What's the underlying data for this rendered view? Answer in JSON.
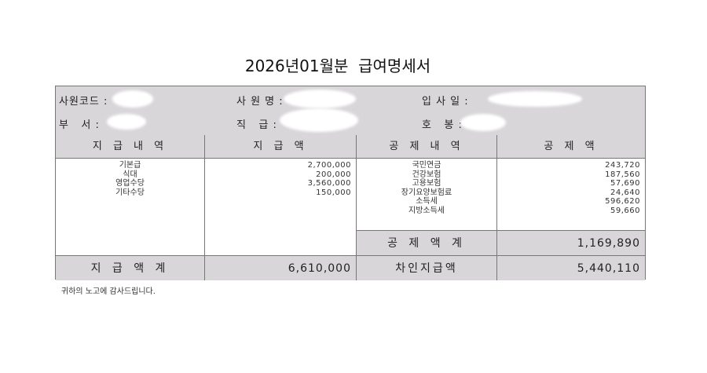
{
  "title": "2026년01월분  급여명세서",
  "info": {
    "employee_code": "사원코드 :",
    "employee_name": "사 원 명 :",
    "hire_date": "입 사 일 :",
    "department": "부   서 :",
    "position": "직   급 :",
    "step": "호   봉 :"
  },
  "headers": {
    "pay_items": "지 급 내 역",
    "pay_amount": "지 급 액",
    "deduction_items": "공 제 내 역",
    "deduction_amount": "공 제 액"
  },
  "pay": [
    {
      "name": "기본급",
      "amount": "2,700,000"
    },
    {
      "name": "식대",
      "amount": "200,000"
    },
    {
      "name": "영업수당",
      "amount": "3,560,000"
    },
    {
      "name": "기타수당",
      "amount": "150,000"
    }
  ],
  "deductions": [
    {
      "name": "국민연금",
      "amount": "243,720"
    },
    {
      "name": "건강보험",
      "amount": "187,560"
    },
    {
      "name": "고용보험",
      "amount": "57,690"
    },
    {
      "name": "장기요양보험료",
      "amount": "24,640"
    },
    {
      "name": "소득세",
      "amount": "596,620"
    },
    {
      "name": "지방소득세",
      "amount": "59,660"
    }
  ],
  "totals": {
    "deduction_label": "공 제 액 계",
    "deduction_total": "1,169,890",
    "pay_label": "지 급 액 계",
    "pay_total": "6,610,000",
    "net_label": "차인지급액",
    "net_total": "5,440,110"
  },
  "footer": "귀하의 노고에 감사드립니다."
}
